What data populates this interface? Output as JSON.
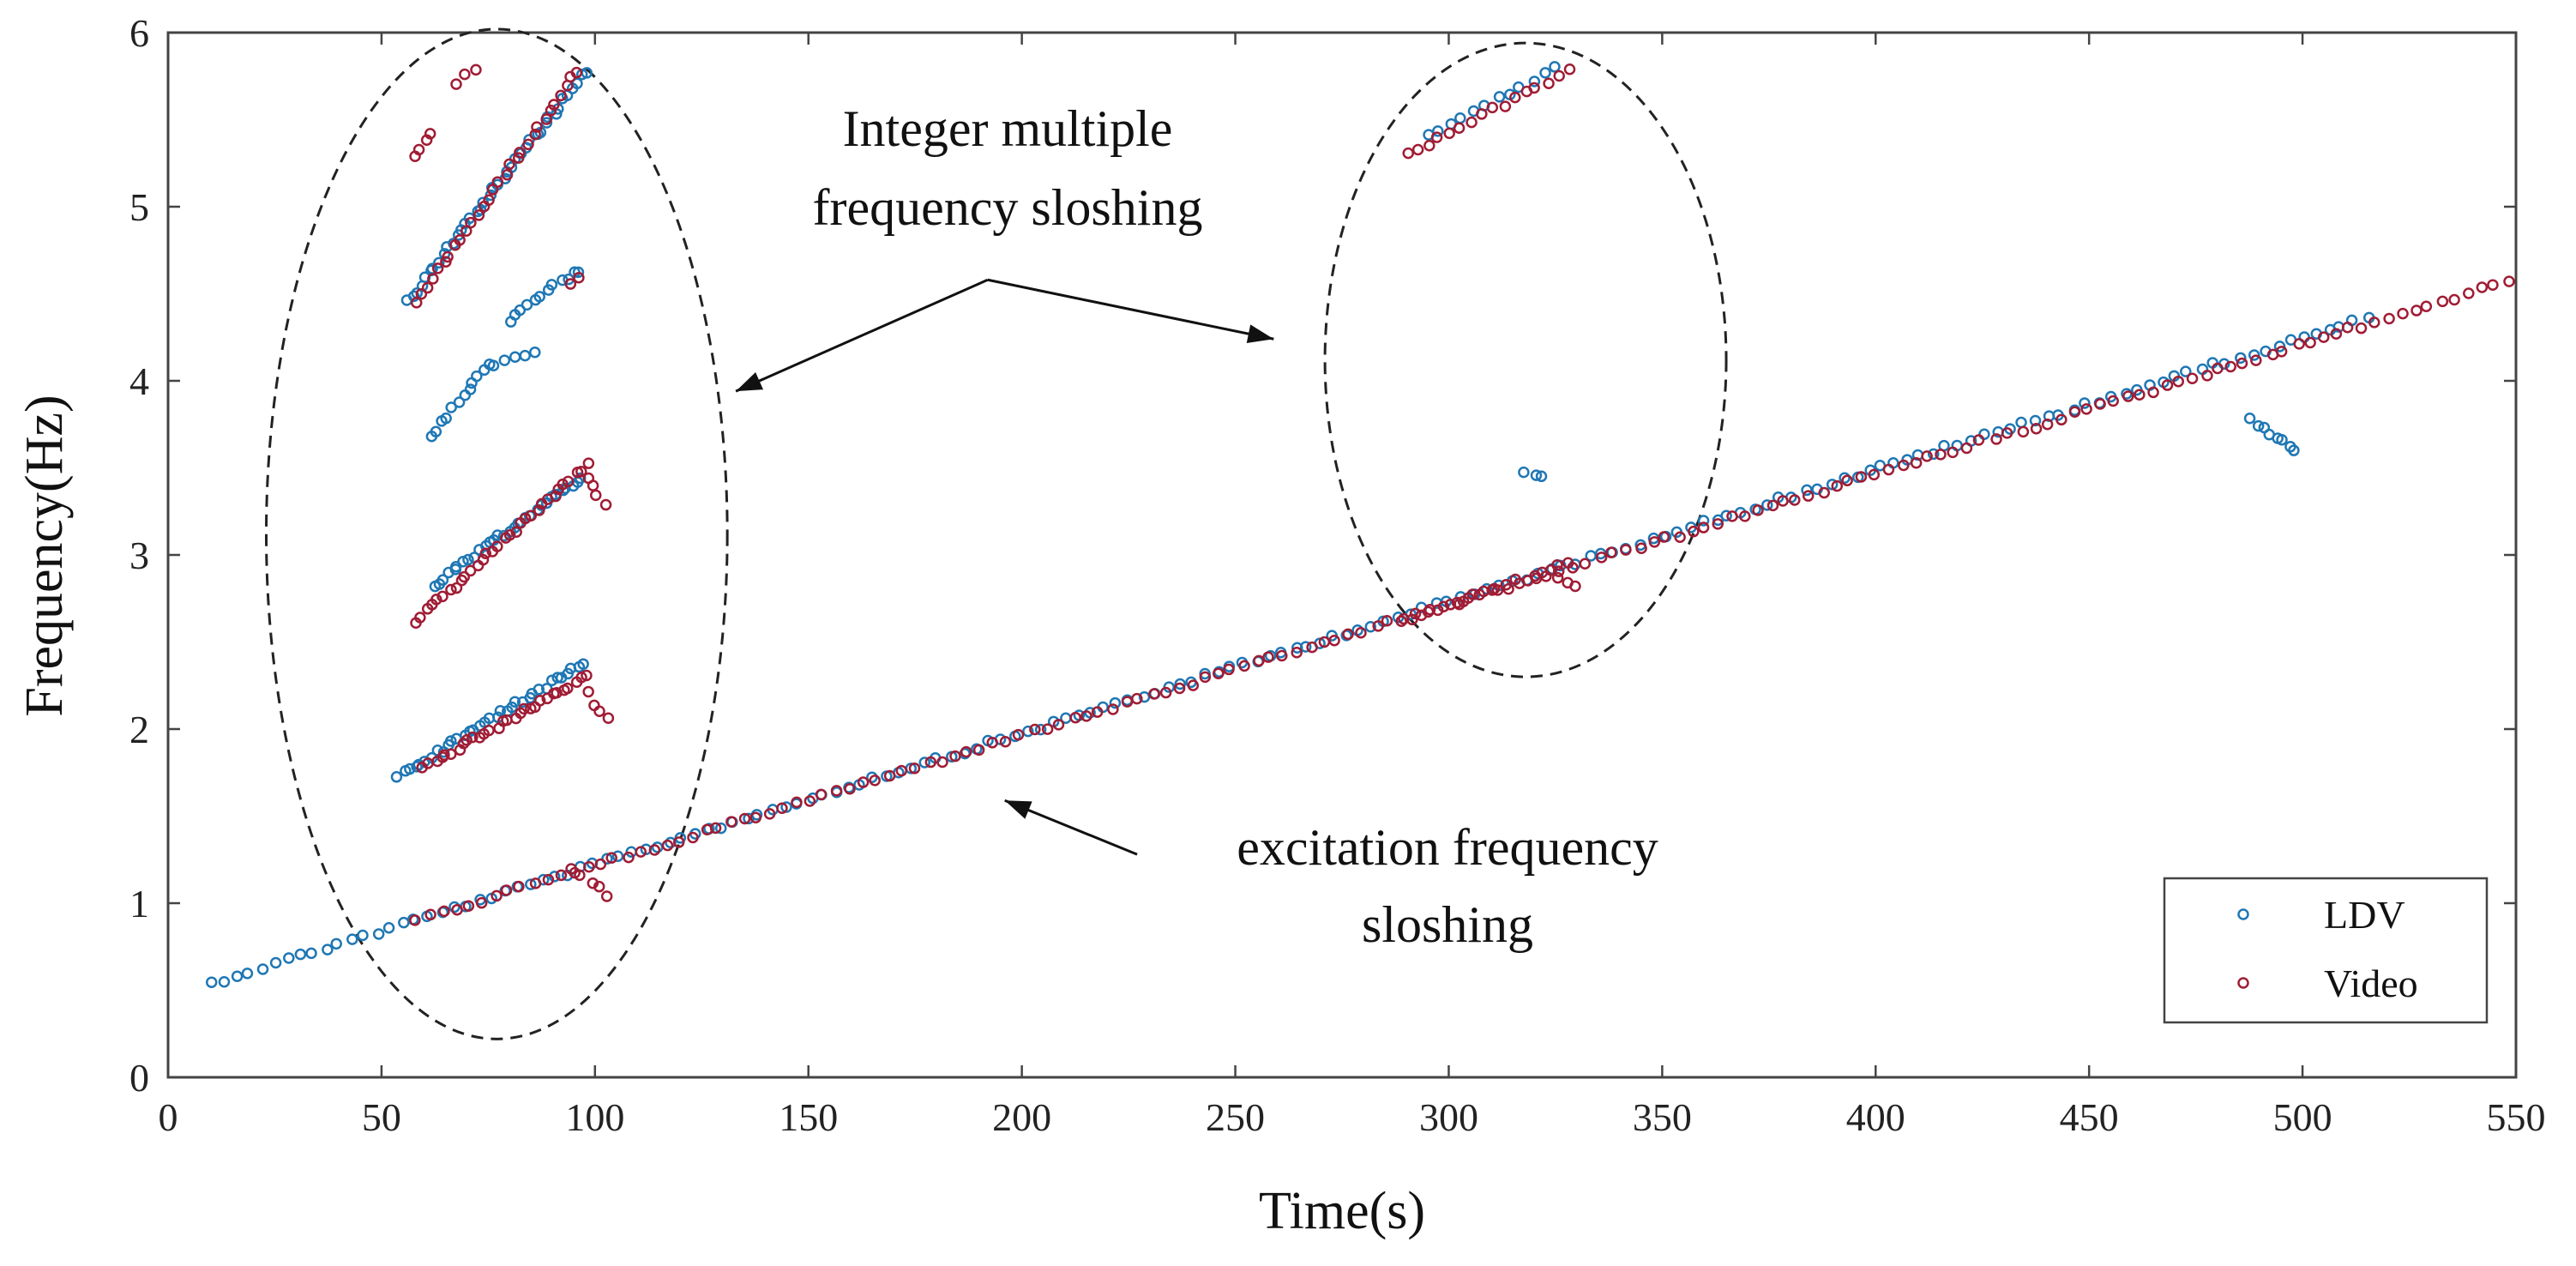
{
  "chart_data": {
    "type": "scatter",
    "title": "",
    "xlabel": "Time(s)",
    "ylabel": "Frequency(Hz)",
    "xlim": [
      0,
      550
    ],
    "ylim": [
      0,
      6
    ],
    "xticks": [
      0,
      50,
      100,
      150,
      200,
      250,
      300,
      350,
      400,
      450,
      500,
      550
    ],
    "yticks": [
      0,
      1,
      2,
      3,
      4,
      5,
      6
    ],
    "grid": false,
    "legend_position": "bottom-right",
    "series": [
      {
        "name": "LDV",
        "color": "#1f77b4",
        "segments": [
          {
            "x0": 10,
            "y0": 0.54,
            "x1": 515,
            "y1": 4.36,
            "n": 170
          },
          {
            "x0": 56,
            "y0": 4.45,
            "x1": 98,
            "y1": 5.78,
            "n": 40
          },
          {
            "x0": 80,
            "y0": 4.35,
            "x1": 90,
            "y1": 4.55,
            "n": 8
          },
          {
            "x0": 92,
            "y0": 4.58,
            "x1": 96,
            "y1": 4.63,
            "n": 4
          },
          {
            "x0": 62,
            "y0": 3.68,
            "x1": 75,
            "y1": 4.1,
            "n": 12
          },
          {
            "x0": 76,
            "y0": 4.1,
            "x1": 86,
            "y1": 4.15,
            "n": 5
          },
          {
            "x0": 62,
            "y0": 2.82,
            "x1": 97,
            "y1": 3.45,
            "n": 30
          },
          {
            "x0": 54,
            "y0": 1.73,
            "x1": 97,
            "y1": 2.38,
            "n": 35
          },
          {
            "x0": 488,
            "y0": 3.78,
            "x1": 498,
            "y1": 3.6,
            "n": 8
          },
          {
            "x0": 318,
            "y0": 3.48,
            "x1": 322,
            "y1": 3.46,
            "n": 3
          },
          {
            "x0": 295,
            "y0": 5.4,
            "x1": 325,
            "y1": 5.8,
            "n": 12
          }
        ]
      },
      {
        "name": "Video",
        "color": "#a01c34",
        "segments": [
          {
            "x0": 58,
            "y0": 0.9,
            "x1": 548,
            "y1": 4.57,
            "n": 160
          },
          {
            "x0": 95,
            "y0": 1.2,
            "x1": 103,
            "y1": 1.05,
            "n": 5
          },
          {
            "x0": 58,
            "y0": 4.45,
            "x1": 96,
            "y1": 5.78,
            "n": 30
          },
          {
            "x0": 58,
            "y0": 5.3,
            "x1": 62,
            "y1": 5.42,
            "n": 4
          },
          {
            "x0": 68,
            "y0": 5.7,
            "x1": 72,
            "y1": 5.8,
            "n": 3
          },
          {
            "x0": 94,
            "y0": 4.55,
            "x1": 96,
            "y1": 4.58,
            "n": 2
          },
          {
            "x0": 58,
            "y0": 2.62,
            "x1": 98,
            "y1": 3.52,
            "n": 32
          },
          {
            "x0": 98,
            "y0": 3.45,
            "x1": 102,
            "y1": 3.28,
            "n": 4
          },
          {
            "x0": 60,
            "y0": 1.78,
            "x1": 98,
            "y1": 2.3,
            "n": 30
          },
          {
            "x0": 98,
            "y0": 2.2,
            "x1": 103,
            "y1": 2.05,
            "n": 4
          },
          {
            "x0": 290,
            "y0": 5.3,
            "x1": 328,
            "y1": 5.78,
            "n": 16
          },
          {
            "x0": 290,
            "y0": 2.62,
            "x1": 328,
            "y1": 2.95,
            "n": 20
          },
          {
            "x0": 326,
            "y0": 2.86,
            "x1": 330,
            "y1": 2.82,
            "n": 3
          }
        ]
      }
    ],
    "annotations": [
      {
        "text": "Integer multiple",
        "kind": "label"
      },
      {
        "text": "frequency sloshing",
        "kind": "label"
      },
      {
        "text": "excitation frequency",
        "kind": "label"
      },
      {
        "text": "sloshing",
        "kind": "label"
      }
    ],
    "highlight_regions": [
      {
        "name": "left-ellipse",
        "cx": 77,
        "cy": 3.12,
        "rx": 54,
        "ry": 2.9
      },
      {
        "name": "right-ellipse",
        "cx": 318,
        "cy": 4.12,
        "rx": 47,
        "ry": 1.82
      }
    ],
    "arrows": [
      {
        "name": "arrow-to-left-ellipse",
        "from": [
          192,
          4.58
        ],
        "to": [
          133,
          3.94
        ]
      },
      {
        "name": "arrow-to-right-ellipse",
        "from": [
          192,
          4.58
        ],
        "to": [
          259,
          4.24
        ]
      },
      {
        "name": "arrow-to-excitation-line",
        "from": [
          227,
          1.28
        ],
        "to": [
          196,
          1.59
        ]
      }
    ]
  }
}
